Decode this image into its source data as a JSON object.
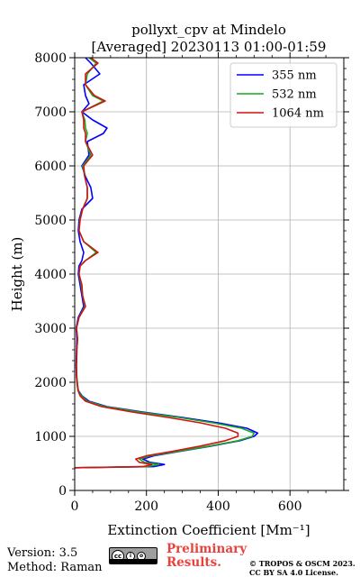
{
  "chart_data": {
    "type": "line",
    "title": [
      "pollyxt_cpv at Mindelo",
      "[Averaged] 20230113 01:00-01:59"
    ],
    "xlabel": "Extinction Coefficient [Mm⁻¹]",
    "ylabel": "Height (m)",
    "xlim": [
      0,
      750
    ],
    "ylim": [
      0,
      8000
    ],
    "xticks": [
      0,
      200,
      400,
      600
    ],
    "yticks": [
      0,
      1000,
      2000,
      3000,
      4000,
      5000,
      6000,
      7000,
      8000
    ],
    "grid": true,
    "legend_position": "top-right",
    "series": [
      {
        "name": "355 nm",
        "color": "#0000ff",
        "points": [
          [
            0,
            420
          ],
          [
            220,
            440
          ],
          [
            250,
            480
          ],
          [
            210,
            520
          ],
          [
            190,
            580
          ],
          [
            220,
            640
          ],
          [
            290,
            720
          ],
          [
            380,
            820
          ],
          [
            460,
            920
          ],
          [
            500,
            1000
          ],
          [
            510,
            1060
          ],
          [
            480,
            1150
          ],
          [
            400,
            1250
          ],
          [
            300,
            1350
          ],
          [
            190,
            1450
          ],
          [
            90,
            1550
          ],
          [
            40,
            1650
          ],
          [
            20,
            1750
          ],
          [
            10,
            1850
          ],
          [
            8,
            1950
          ],
          [
            5,
            2100
          ],
          [
            4,
            2300
          ],
          [
            5,
            2600
          ],
          [
            6,
            2800
          ],
          [
            4,
            3000
          ],
          [
            10,
            3200
          ],
          [
            25,
            3400
          ],
          [
            20,
            3600
          ],
          [
            15,
            3800
          ],
          [
            10,
            4000
          ],
          [
            12,
            4150
          ],
          [
            20,
            4250
          ],
          [
            25,
            4400
          ],
          [
            15,
            4600
          ],
          [
            10,
            4800
          ],
          [
            12,
            5000
          ],
          [
            20,
            5200
          ],
          [
            50,
            5400
          ],
          [
            45,
            5600
          ],
          [
            30,
            5800
          ],
          [
            20,
            6000
          ],
          [
            40,
            6200
          ],
          [
            35,
            6450
          ],
          [
            80,
            6600
          ],
          [
            90,
            6700
          ],
          [
            50,
            6850
          ],
          [
            20,
            7000
          ],
          [
            40,
            7150
          ],
          [
            30,
            7300
          ],
          [
            25,
            7500
          ],
          [
            70,
            7700
          ],
          [
            45,
            7900
          ],
          [
            30,
            8000
          ]
        ]
      },
      {
        "name": "532 nm",
        "color": "#1aa81a",
        "points": [
          [
            0,
            420
          ],
          [
            200,
            440
          ],
          [
            235,
            480
          ],
          [
            195,
            520
          ],
          [
            180,
            580
          ],
          [
            210,
            640
          ],
          [
            285,
            720
          ],
          [
            375,
            820
          ],
          [
            455,
            920
          ],
          [
            495,
            1000
          ],
          [
            500,
            1060
          ],
          [
            465,
            1150
          ],
          [
            385,
            1250
          ],
          [
            290,
            1350
          ],
          [
            180,
            1450
          ],
          [
            85,
            1550
          ],
          [
            35,
            1650
          ],
          [
            18,
            1750
          ],
          [
            10,
            1850
          ],
          [
            8,
            1950
          ],
          [
            6,
            2100
          ],
          [
            5,
            2300
          ],
          [
            6,
            2600
          ],
          [
            8,
            2800
          ],
          [
            5,
            3000
          ],
          [
            12,
            3200
          ],
          [
            28,
            3400
          ],
          [
            22,
            3600
          ],
          [
            18,
            3800
          ],
          [
            12,
            4000
          ],
          [
            15,
            4150
          ],
          [
            30,
            4250
          ],
          [
            60,
            4400
          ],
          [
            25,
            4600
          ],
          [
            12,
            4800
          ],
          [
            14,
            5000
          ],
          [
            22,
            5200
          ],
          [
            35,
            5400
          ],
          [
            35,
            5600
          ],
          [
            28,
            5800
          ],
          [
            22,
            6000
          ],
          [
            45,
            6200
          ],
          [
            30,
            6450
          ],
          [
            35,
            6600
          ],
          [
            30,
            6700
          ],
          [
            28,
            6850
          ],
          [
            20,
            7000
          ],
          [
            80,
            7200
          ],
          [
            50,
            7300
          ],
          [
            30,
            7500
          ],
          [
            35,
            7700
          ],
          [
            60,
            7900
          ],
          [
            40,
            8000
          ]
        ]
      },
      {
        "name": "1064 nm",
        "color": "#d21414",
        "points": [
          [
            0,
            420
          ],
          [
            190,
            440
          ],
          [
            215,
            480
          ],
          [
            180,
            520
          ],
          [
            170,
            580
          ],
          [
            200,
            640
          ],
          [
            270,
            720
          ],
          [
            350,
            820
          ],
          [
            420,
            920
          ],
          [
            455,
            1000
          ],
          [
            455,
            1060
          ],
          [
            420,
            1150
          ],
          [
            350,
            1250
          ],
          [
            260,
            1350
          ],
          [
            160,
            1450
          ],
          [
            75,
            1550
          ],
          [
            30,
            1650
          ],
          [
            15,
            1750
          ],
          [
            9,
            1850
          ],
          [
            7,
            1950
          ],
          [
            5,
            2100
          ],
          [
            5,
            2300
          ],
          [
            6,
            2600
          ],
          [
            8,
            2800
          ],
          [
            5,
            3000
          ],
          [
            12,
            3200
          ],
          [
            30,
            3400
          ],
          [
            22,
            3600
          ],
          [
            20,
            3800
          ],
          [
            12,
            4000
          ],
          [
            15,
            4150
          ],
          [
            30,
            4250
          ],
          [
            65,
            4400
          ],
          [
            25,
            4600
          ],
          [
            12,
            4800
          ],
          [
            15,
            5000
          ],
          [
            22,
            5200
          ],
          [
            35,
            5400
          ],
          [
            35,
            5600
          ],
          [
            28,
            5800
          ],
          [
            25,
            6000
          ],
          [
            50,
            6200
          ],
          [
            30,
            6450
          ],
          [
            30,
            6600
          ],
          [
            25,
            6700
          ],
          [
            25,
            6850
          ],
          [
            20,
            7000
          ],
          [
            85,
            7200
          ],
          [
            55,
            7300
          ],
          [
            30,
            7500
          ],
          [
            30,
            7700
          ],
          [
            65,
            7900
          ],
          [
            45,
            8000
          ]
        ]
      }
    ]
  },
  "footer": {
    "version": "Version: 3.5",
    "method": "Method: Raman",
    "preliminary_line1": "Preliminary",
    "preliminary_line2": "Results.",
    "copyright_line1": "© TROPOS & OSCM 2023.",
    "copyright_line2": "CC BY SA 4.0 License.",
    "license_badge": "cc by sa",
    "prelim_color": "#e8423e"
  }
}
